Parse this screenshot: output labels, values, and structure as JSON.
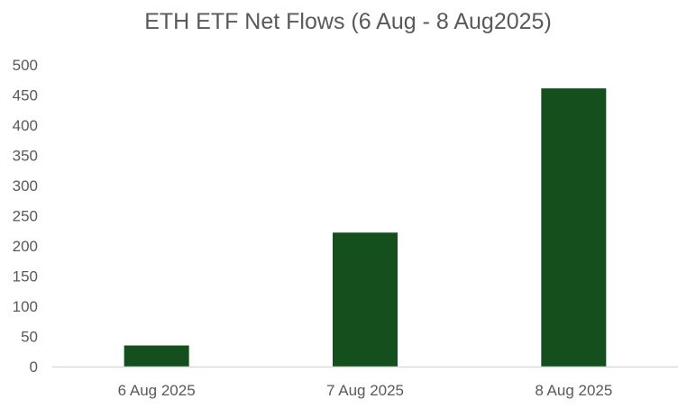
{
  "chart_data": {
    "type": "bar",
    "title": "ETH ETF Net Flows (6 Aug - 8 Aug2025)",
    "categories": [
      "6 Aug 2025",
      "7 Aug 2025",
      "8 Aug 2025"
    ],
    "values": [
      35,
      222,
      461
    ],
    "xlabel": "",
    "ylabel": "",
    "ylim": [
      0,
      500
    ],
    "yticks": [
      0,
      50,
      100,
      150,
      200,
      250,
      300,
      350,
      400,
      450,
      500
    ],
    "grid": false,
    "legend": "none",
    "bar_color": "#144f1d",
    "axis_color": "#d9d9d9",
    "text_color": "#595959"
  }
}
